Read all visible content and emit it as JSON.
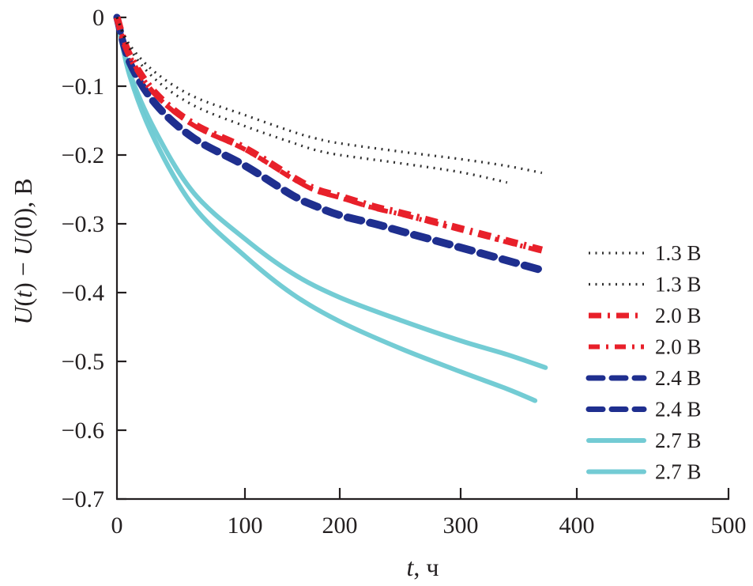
{
  "chart_data": {
    "type": "line",
    "title": "",
    "xlabel_italic": "t",
    "xlabel_rest": ", ч",
    "ylabel_parts": [
      "U",
      "(",
      "t",
      ") − ",
      "U",
      "(0), В"
    ],
    "xlim": [
      0,
      500
    ],
    "ylim": [
      -0.7,
      0
    ],
    "x_ticks": [
      0,
      100,
      200,
      300,
      400,
      500
    ],
    "x_tick_labels": [
      "0",
      "100",
      "200",
      "300",
      "400",
      "500"
    ],
    "y_ticks": [
      0,
      -0.1,
      -0.2,
      -0.3,
      -0.4,
      -0.5,
      -0.6,
      -0.7
    ],
    "y_tick_labels": [
      "0",
      "−0.1",
      "−0.2",
      "−0.3",
      "−0.4",
      "−0.5",
      "−0.6",
      "−0.7"
    ],
    "grid": false,
    "legend_position": "right",
    "series": [
      {
        "name": "1.3 В",
        "style": "dotted",
        "color": "#1a1a1a",
        "x": [
          0,
          10,
          30,
          60,
          100,
          150,
          175,
          200,
          250,
          300,
          340,
          370
        ],
        "y": [
          0,
          -0.04,
          -0.08,
          -0.115,
          -0.142,
          -0.166,
          -0.176,
          -0.183,
          -0.195,
          -0.206,
          -0.216,
          -0.226
        ]
      },
      {
        "name": "1.3 В",
        "style": "dotted",
        "color": "#1a1a1a",
        "x": [
          0,
          10,
          30,
          60,
          100,
          150,
          175,
          200,
          250,
          300,
          340
        ],
        "y": [
          0,
          -0.045,
          -0.09,
          -0.128,
          -0.158,
          -0.182,
          -0.193,
          -0.2,
          -0.212,
          -0.225,
          -0.24
        ]
      },
      {
        "name": "2.0 В",
        "style": "dashdot-heavy",
        "color": "#e8202a",
        "x": [
          0,
          10,
          30,
          60,
          100,
          150,
          175,
          200,
          230,
          250,
          300,
          370
        ],
        "y": [
          0,
          -0.055,
          -0.11,
          -0.155,
          -0.19,
          -0.232,
          -0.25,
          -0.26,
          -0.276,
          -0.284,
          -0.307,
          -0.338
        ]
      },
      {
        "name": "2.0 В",
        "style": "dashdot",
        "color": "#e8202a",
        "x": [
          0,
          10,
          30,
          60,
          100,
          150,
          175,
          200,
          230,
          250,
          300,
          370
        ],
        "y": [
          0,
          -0.056,
          -0.112,
          -0.157,
          -0.192,
          -0.234,
          -0.252,
          -0.262,
          -0.278,
          -0.286,
          -0.309,
          -0.34
        ]
      },
      {
        "name": "2.4 В",
        "style": "dashed",
        "color": "#1f2f8f",
        "x": [
          0,
          10,
          30,
          60,
          100,
          150,
          175,
          200,
          230,
          250,
          300,
          372
        ],
        "y": [
          0,
          -0.065,
          -0.125,
          -0.175,
          -0.215,
          -0.258,
          -0.274,
          -0.287,
          -0.3,
          -0.31,
          -0.334,
          -0.368
        ]
      },
      {
        "name": "2.4 В",
        "style": "dashed",
        "color": "#1f2f8f",
        "x": [
          0,
          10,
          30,
          60,
          100,
          150,
          175,
          200,
          230,
          250,
          300,
          372
        ],
        "y": [
          0,
          -0.066,
          -0.126,
          -0.176,
          -0.216,
          -0.259,
          -0.275,
          -0.288,
          -0.301,
          -0.311,
          -0.335,
          -0.369
        ]
      },
      {
        "name": "2.7 В",
        "style": "solid",
        "color": "#6cc9d2",
        "x": [
          0,
          10,
          30,
          60,
          100,
          150,
          200,
          250,
          300,
          340,
          373
        ],
        "y": [
          0,
          -0.08,
          -0.165,
          -0.255,
          -0.322,
          -0.372,
          -0.407,
          -0.44,
          -0.47,
          -0.49,
          -0.509
        ]
      },
      {
        "name": "2.7 В",
        "style": "solid",
        "color": "#6cc9d2",
        "x": [
          0,
          10,
          30,
          60,
          100,
          150,
          200,
          250,
          300,
          340,
          364
        ],
        "y": [
          0,
          -0.085,
          -0.18,
          -0.275,
          -0.347,
          -0.402,
          -0.442,
          -0.481,
          -0.515,
          -0.54,
          -0.557
        ]
      }
    ]
  }
}
